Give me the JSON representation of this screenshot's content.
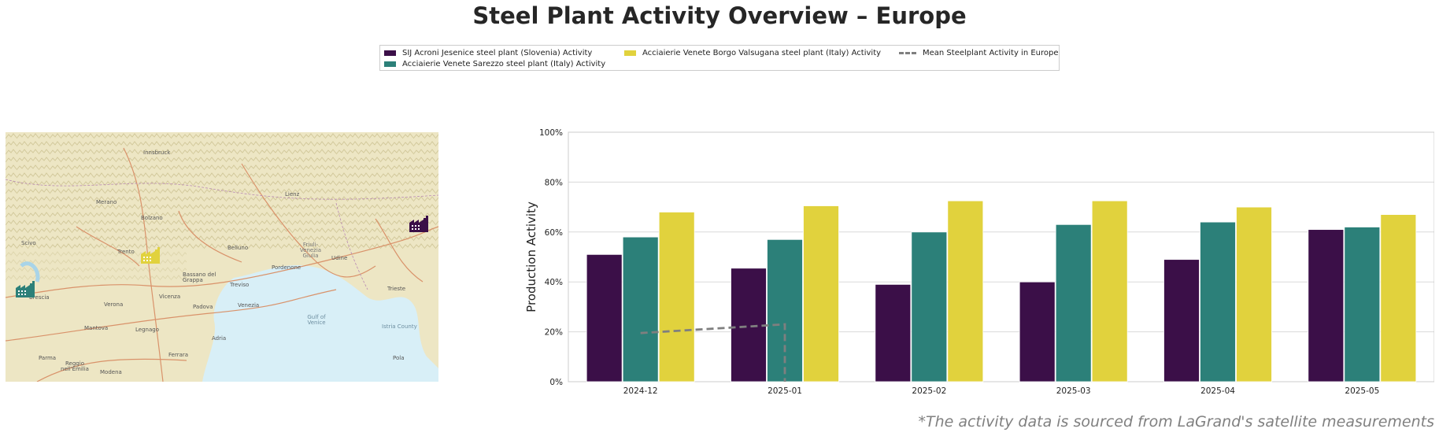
{
  "title": "Steel Plant Activity Overview – Europe",
  "footnote": "*The activity data is sourced from LaGrand's satellite measurements",
  "legend": {
    "sij": "SIJ Acroni Jesenice steel plant (Slovenia) Activity",
    "sarezzo": "Acciaierie Venete Sarezzo steel plant (Italy) Activity",
    "borgo": "Acciaierie Venete Borgo Valsugana steel plant (Italy) Activity",
    "mean": "Mean Steelplant Activity in Europe"
  },
  "colors": {
    "sij": "#3b0f48",
    "sarezzo": "#2c8079",
    "borgo": "#e1d23d",
    "mean": "#7f7f7f",
    "grid": "#d9d9d9",
    "map_land": "#ede6c4",
    "map_sea": "#d8eff7"
  },
  "map": {
    "labels": [
      "Innsbruck",
      "Lienz",
      "Bolzano",
      "Trento",
      "Belluno",
      "Udine",
      "Treviso",
      "Pordenone",
      "Bassano del Grappa",
      "Brescia",
      "Verona",
      "Vicenza",
      "Padova",
      "Venezia",
      "Trieste",
      "Gulf of Venice",
      "Mantova",
      "Legnago",
      "Adria",
      "Parma",
      "Reggio nell'Emilia",
      "Modena",
      "Ferrara",
      "Pola",
      "Istria County",
      "Friuli-Venezia Giulia",
      "Merano",
      "Scivo"
    ],
    "markers": [
      {
        "name": "sij-factory-icon",
        "color": "#3b0f48"
      },
      {
        "name": "sarezzo-factory-icon",
        "color": "#2c8079"
      },
      {
        "name": "borgo-factory-icon",
        "color": "#e1d23d"
      }
    ]
  },
  "chart_data": {
    "type": "bar",
    "title": "",
    "xlabel": "",
    "ylabel": "Production Activity",
    "ylim": [
      0,
      100
    ],
    "yticks": [
      "0%",
      "20%",
      "40%",
      "60%",
      "80%",
      "100%"
    ],
    "categories": [
      "2024-12",
      "2025-01",
      "2025-02",
      "2025-03",
      "2025-04",
      "2025-05"
    ],
    "series": [
      {
        "name": "SIJ Acroni Jesenice steel plant (Slovenia) Activity",
        "key": "sij",
        "values": [
          51,
          45.5,
          39,
          40,
          49,
          61
        ]
      },
      {
        "name": "Acciaierie Venete Sarezzo steel plant (Italy) Activity",
        "key": "sarezzo",
        "values": [
          58,
          57,
          60,
          63,
          64,
          62
        ]
      },
      {
        "name": "Acciaierie Venete Borgo Valsugana steel plant (Italy) Activity",
        "key": "borgo",
        "values": [
          68,
          70.5,
          72.5,
          72.5,
          70,
          67
        ]
      }
    ],
    "mean_line": {
      "name": "Mean Steelplant Activity in Europe",
      "points": [
        {
          "x": "2024-12",
          "y": 19.5
        },
        {
          "x": "2025-01",
          "y": 23
        },
        {
          "x": "2025-01",
          "y": 0
        }
      ]
    },
    "grid": true,
    "legend_position": "top-center"
  }
}
